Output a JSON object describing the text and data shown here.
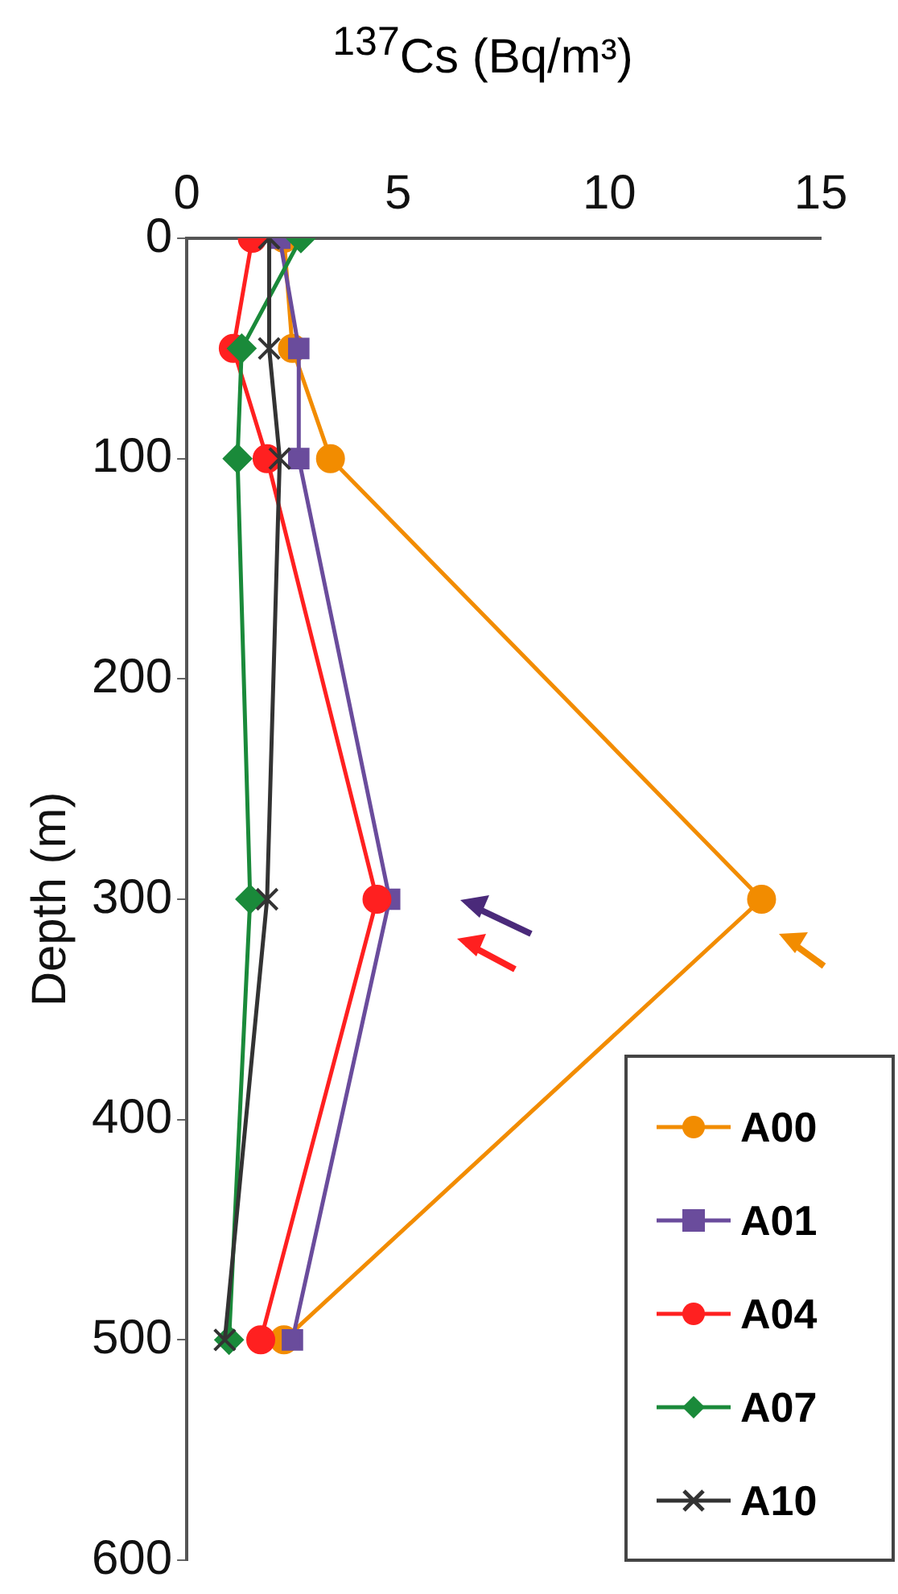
{
  "chart_data": {
    "type": "line",
    "xlabel": "$^{137}$Cs (Bq/m³)",
    "ylabel": "Depth (m)",
    "xlim": [
      0,
      15
    ],
    "xticks": [
      0,
      5,
      10,
      15
    ],
    "ylim": [
      600,
      0
    ],
    "yticks": [
      0,
      100,
      200,
      300,
      400,
      500,
      600
    ],
    "grid": false,
    "legend": "bottom right",
    "series": [
      {
        "name": "A00",
        "color": "#f28c00",
        "marker": "circle",
        "x": [
          2.3,
          2.5,
          3.4,
          13.6,
          2.3
        ],
        "values": [
          0,
          50,
          100,
          300,
          500
        ]
      },
      {
        "name": "A01",
        "color": "#6a4c9c",
        "marker": "square",
        "x": [
          2.2,
          2.65,
          2.65,
          4.8,
          2.5
        ],
        "values": [
          0,
          50,
          100,
          300,
          500
        ]
      },
      {
        "name": "A04",
        "color": "#ff2020",
        "marker": "circle",
        "x": [
          1.55,
          1.1,
          1.9,
          4.5,
          1.75
        ],
        "values": [
          0,
          50,
          100,
          300,
          500
        ]
      },
      {
        "name": "A07",
        "color": "#1a8a3a",
        "marker": "diamond",
        "x": [
          2.7,
          1.3,
          1.2,
          1.5,
          1.0
        ],
        "values": [
          0,
          50,
          100,
          300,
          500
        ]
      },
      {
        "name": "A10",
        "color": "#333333",
        "marker": "cross",
        "x": [
          1.95,
          1.95,
          2.2,
          1.9,
          0.9
        ],
        "values": [
          0,
          50,
          100,
          300,
          500
        ]
      }
    ]
  }
}
